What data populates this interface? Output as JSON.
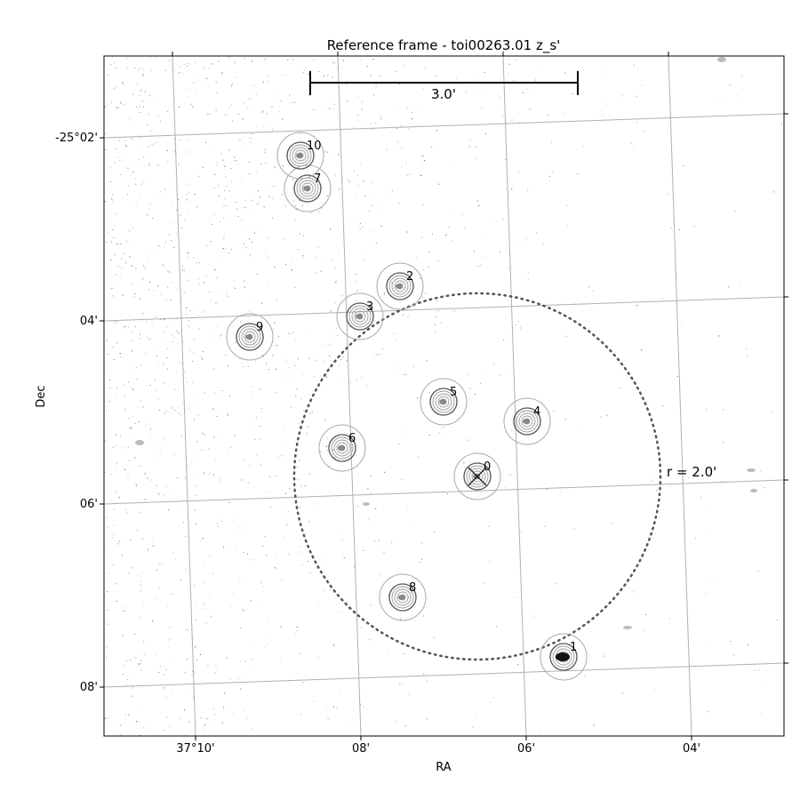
{
  "title": "Reference frame - toi00263.01 z_s'",
  "xlabel": "RA",
  "ylabel": "Dec",
  "scale_bar_label": "3.0'",
  "radius_label": "r = 2.0'",
  "ra_ticks": [
    "37°10'",
    "08'",
    "06'",
    "04'"
  ],
  "dec_ticks": [
    "-25°02'",
    "04'",
    "06'",
    "08'"
  ],
  "stars": [
    {
      "id": "0",
      "target": true
    },
    {
      "id": "1"
    },
    {
      "id": "2"
    },
    {
      "id": "3"
    },
    {
      "id": "4"
    },
    {
      "id": "5"
    },
    {
      "id": "6"
    },
    {
      "id": "7"
    },
    {
      "id": "8"
    },
    {
      "id": "9"
    },
    {
      "id": "10"
    }
  ],
  "colors": {
    "grid": "#b0b0b0",
    "circle": "#aaaaaa",
    "dotted": "#555555"
  }
}
